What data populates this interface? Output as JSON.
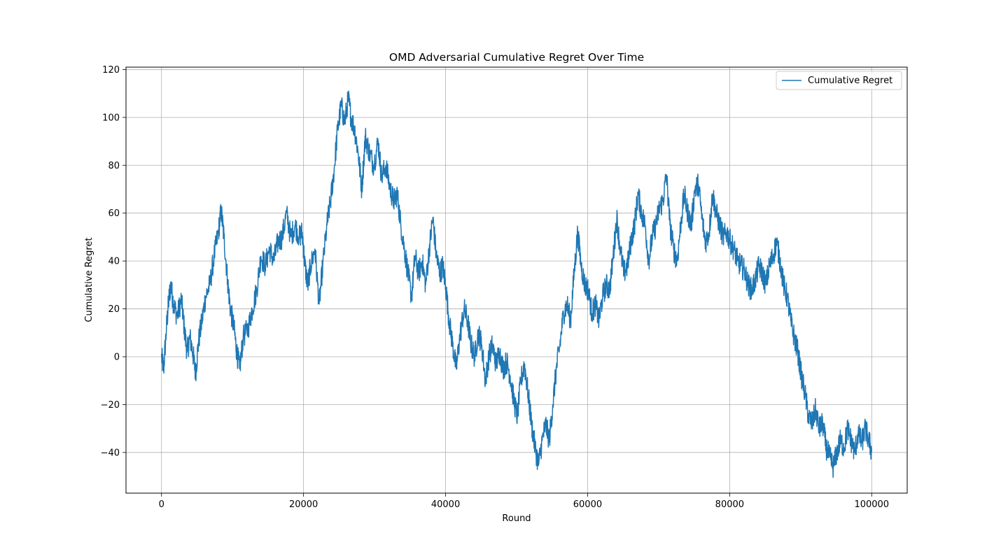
{
  "chart_data": {
    "type": "line",
    "title": "OMD Adversarial Cumulative Regret Over Time",
    "xlabel": "Round",
    "ylabel": "Cumulative Regret",
    "xlim": [
      -5000,
      105000
    ],
    "ylim": [
      -57,
      121
    ],
    "xticks": [
      0,
      20000,
      40000,
      60000,
      80000,
      100000
    ],
    "yticks": [
      -40,
      -20,
      0,
      20,
      40,
      60,
      80,
      100,
      120
    ],
    "grid": true,
    "legend_position": "top-right",
    "color": "#1f77b4",
    "series": [
      {
        "name": "Cumulative Regret",
        "points": [
          [
            0,
            0
          ],
          [
            300,
            -5
          ],
          [
            700,
            12
          ],
          [
            1000,
            23
          ],
          [
            1300,
            30
          ],
          [
            1700,
            22
          ],
          [
            2200,
            17
          ],
          [
            2800,
            24
          ],
          [
            3200,
            12
          ],
          [
            3600,
            2
          ],
          [
            4000,
            8
          ],
          [
            4400,
            2
          ],
          [
            4800,
            -7
          ],
          [
            5200,
            6
          ],
          [
            5700,
            15
          ],
          [
            6200,
            25
          ],
          [
            6800,
            30
          ],
          [
            7400,
            42
          ],
          [
            8000,
            52
          ],
          [
            8400,
            61
          ],
          [
            8800,
            50
          ],
          [
            9300,
            32
          ],
          [
            9700,
            20
          ],
          [
            10200,
            12
          ],
          [
            10600,
            2
          ],
          [
            11000,
            -5
          ],
          [
            11500,
            8
          ],
          [
            12200,
            12
          ],
          [
            12800,
            20
          ],
          [
            13400,
            28
          ],
          [
            14000,
            42
          ],
          [
            14600,
            38
          ],
          [
            15200,
            45
          ],
          [
            15800,
            40
          ],
          [
            16400,
            48
          ],
          [
            17000,
            50
          ],
          [
            17600,
            60
          ],
          [
            18200,
            50
          ],
          [
            18800,
            55
          ],
          [
            19400,
            50
          ],
          [
            19800,
            52
          ],
          [
            20200,
            38
          ],
          [
            20600,
            30
          ],
          [
            21000,
            38
          ],
          [
            21600,
            45
          ],
          [
            22200,
            22
          ],
          [
            22700,
            38
          ],
          [
            23300,
            55
          ],
          [
            23800,
            65
          ],
          [
            24300,
            78
          ],
          [
            24800,
            95
          ],
          [
            25300,
            105
          ],
          [
            25800,
            98
          ],
          [
            26300,
            108
          ],
          [
            26700,
            100
          ],
          [
            27200,
            95
          ],
          [
            27700,
            85
          ],
          [
            28200,
            70
          ],
          [
            28700,
            92
          ],
          [
            29300,
            85
          ],
          [
            29900,
            80
          ],
          [
            30500,
            90
          ],
          [
            31000,
            75
          ],
          [
            31600,
            80
          ],
          [
            32200,
            70
          ],
          [
            32700,
            65
          ],
          [
            33200,
            68
          ],
          [
            33700,
            55
          ],
          [
            34200,
            45
          ],
          [
            34700,
            35
          ],
          [
            35200,
            25
          ],
          [
            35700,
            42
          ],
          [
            36200,
            35
          ],
          [
            36700,
            40
          ],
          [
            37200,
            30
          ],
          [
            37700,
            45
          ],
          [
            38200,
            58
          ],
          [
            38700,
            42
          ],
          [
            39200,
            35
          ],
          [
            39600,
            38
          ],
          [
            40000,
            30
          ],
          [
            40500,
            15
          ],
          [
            41000,
            5
          ],
          [
            41500,
            -5
          ],
          [
            42000,
            8
          ],
          [
            42600,
            20
          ],
          [
            43100,
            15
          ],
          [
            43600,
            5
          ],
          [
            44100,
            0
          ],
          [
            44600,
            10
          ],
          [
            45100,
            5
          ],
          [
            45600,
            -10
          ],
          [
            46100,
            0
          ],
          [
            46600,
            5
          ],
          [
            47100,
            -3
          ],
          [
            47600,
            2
          ],
          [
            48100,
            -5
          ],
          [
            48600,
            -2
          ],
          [
            49100,
            -8
          ],
          [
            49600,
            -18
          ],
          [
            50100,
            -25
          ],
          [
            50600,
            -10
          ],
          [
            51100,
            -3
          ],
          [
            51600,
            -15
          ],
          [
            52100,
            -28
          ],
          [
            52600,
            -38
          ],
          [
            53100,
            -45
          ],
          [
            53600,
            -35
          ],
          [
            54100,
            -28
          ],
          [
            54600,
            -35
          ],
          [
            55100,
            -20
          ],
          [
            55600,
            -5
          ],
          [
            56100,
            5
          ],
          [
            56600,
            18
          ],
          [
            57100,
            22
          ],
          [
            57600,
            15
          ],
          [
            58100,
            35
          ],
          [
            58600,
            52
          ],
          [
            59100,
            38
          ],
          [
            59600,
            30
          ],
          [
            60100,
            28
          ],
          [
            60600,
            18
          ],
          [
            61100,
            22
          ],
          [
            61600,
            15
          ],
          [
            62100,
            25
          ],
          [
            62600,
            30
          ],
          [
            63100,
            28
          ],
          [
            63600,
            42
          ],
          [
            64100,
            58
          ],
          [
            64600,
            45
          ],
          [
            65100,
            35
          ],
          [
            65600,
            38
          ],
          [
            66100,
            48
          ],
          [
            66600,
            55
          ],
          [
            67100,
            68
          ],
          [
            67600,
            60
          ],
          [
            68100,
            55
          ],
          [
            68600,
            40
          ],
          [
            69100,
            50
          ],
          [
            69600,
            55
          ],
          [
            70100,
            62
          ],
          [
            70600,
            65
          ],
          [
            71100,
            76
          ],
          [
            71600,
            55
          ],
          [
            72100,
            45
          ],
          [
            72600,
            40
          ],
          [
            73100,
            55
          ],
          [
            73600,
            68
          ],
          [
            74100,
            60
          ],
          [
            74600,
            55
          ],
          [
            75100,
            70
          ],
          [
            75600,
            72
          ],
          [
            76100,
            58
          ],
          [
            76600,
            48
          ],
          [
            77100,
            52
          ],
          [
            77600,
            68
          ],
          [
            78100,
            60
          ],
          [
            78600,
            55
          ],
          [
            79100,
            50
          ],
          [
            79600,
            52
          ],
          [
            80100,
            48
          ],
          [
            80600,
            45
          ],
          [
            81100,
            40
          ],
          [
            81600,
            38
          ],
          [
            82100,
            36
          ],
          [
            82600,
            30
          ],
          [
            83100,
            28
          ],
          [
            83600,
            32
          ],
          [
            84100,
            38
          ],
          [
            84600,
            35
          ],
          [
            85100,
            30
          ],
          [
            85600,
            38
          ],
          [
            86100,
            42
          ],
          [
            86600,
            48
          ],
          [
            87100,
            40
          ],
          [
            87600,
            30
          ],
          [
            88100,
            25
          ],
          [
            88600,
            15
          ],
          [
            89100,
            8
          ],
          [
            89600,
            2
          ],
          [
            90100,
            -8
          ],
          [
            90600,
            -15
          ],
          [
            91100,
            -25
          ],
          [
            91600,
            -28
          ],
          [
            92100,
            -22
          ],
          [
            92600,
            -30
          ],
          [
            93100,
            -28
          ],
          [
            93600,
            -38
          ],
          [
            94100,
            -42
          ],
          [
            94600,
            -46
          ],
          [
            95100,
            -40
          ],
          [
            95600,
            -35
          ],
          [
            96100,
            -38
          ],
          [
            96600,
            -30
          ],
          [
            97100,
            -35
          ],
          [
            97600,
            -40
          ],
          [
            98100,
            -32
          ],
          [
            98600,
            -36
          ],
          [
            99100,
            -30
          ],
          [
            99600,
            -35
          ],
          [
            100000,
            -40
          ]
        ]
      }
    ]
  }
}
